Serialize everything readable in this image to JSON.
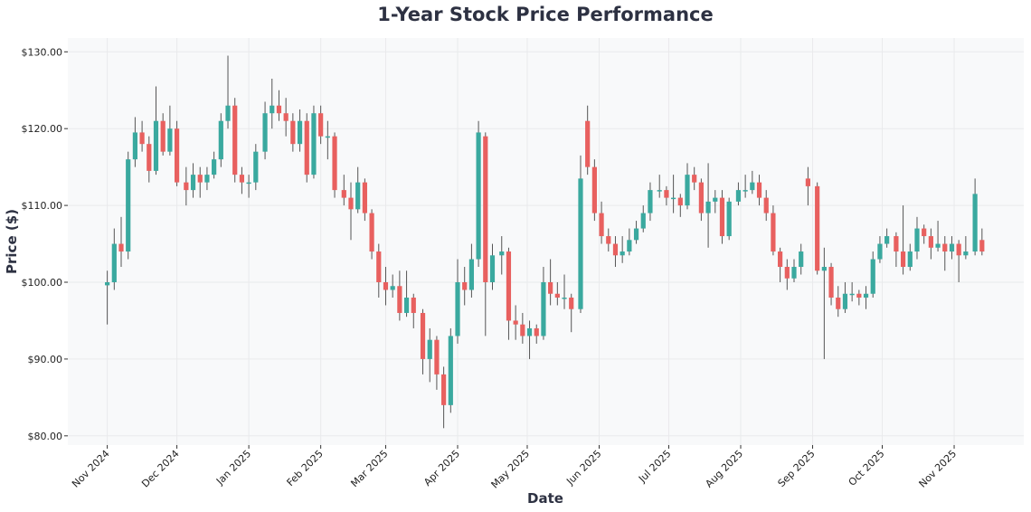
{
  "chart_data": {
    "type": "candlestick",
    "title": "1-Year Stock Price Performance",
    "xlabel": "Date",
    "ylabel": "Price ($)",
    "ylim": [
      78.8,
      131.8
    ],
    "xlim": [
      "2024-10-15",
      "2025-12-01"
    ],
    "grid": true,
    "legend": "none",
    "colors": {
      "up": "#3aa99f",
      "down": "#e8605f",
      "wick": "#555555",
      "plot_bg": "#f8f9fa",
      "grid": "#e9eaec"
    },
    "y_ticks": [
      {
        "value": 80,
        "label": "$80.00"
      },
      {
        "value": 90,
        "label": "$90.00"
      },
      {
        "value": 100,
        "label": "$100.00"
      },
      {
        "value": 110,
        "label": "$110.00"
      },
      {
        "value": 120,
        "label": "$120.00"
      },
      {
        "value": 130,
        "label": "$130.00"
      }
    ],
    "x_ticks": [
      {
        "date": "2024-11-01",
        "label": "Nov 2024"
      },
      {
        "date": "2024-12-01",
        "label": "Dec 2024"
      },
      {
        "date": "2025-01-01",
        "label": "Jan 2025"
      },
      {
        "date": "2025-02-01",
        "label": "Feb 2025"
      },
      {
        "date": "2025-03-01",
        "label": "Mar 2025"
      },
      {
        "date": "2025-04-01",
        "label": "Apr 2025"
      },
      {
        "date": "2025-05-01",
        "label": "May 2025"
      },
      {
        "date": "2025-06-01",
        "label": "Jun 2025"
      },
      {
        "date": "2025-07-01",
        "label": "Jul 2025"
      },
      {
        "date": "2025-08-01",
        "label": "Aug 2025"
      },
      {
        "date": "2025-09-01",
        "label": "Sep 2025"
      },
      {
        "date": "2025-10-01",
        "label": "Oct 2025"
      },
      {
        "date": "2025-11-01",
        "label": "Nov 2025"
      }
    ],
    "ohlc_fields": [
      "date",
      "open",
      "high",
      "low",
      "close"
    ],
    "ohlc": [
      [
        "2024-11-01",
        99.6,
        101.5,
        94.5,
        100
      ],
      [
        "2024-11-04",
        100,
        107,
        99,
        105
      ],
      [
        "2024-11-07",
        105,
        108.5,
        102,
        104
      ],
      [
        "2024-11-10",
        104,
        117,
        103,
        116
      ],
      [
        "2024-11-13",
        116,
        121.5,
        115,
        119.5
      ],
      [
        "2024-11-16",
        119.5,
        121,
        117,
        118
      ],
      [
        "2024-11-19",
        118,
        119,
        113,
        114.5
      ],
      [
        "2024-11-22",
        114.5,
        125.5,
        114,
        121
      ],
      [
        "2024-11-25",
        121,
        122,
        116.5,
        117
      ],
      [
        "2024-11-28",
        117,
        123,
        116.5,
        120
      ],
      [
        "2024-12-01",
        120,
        121,
        112.5,
        113
      ],
      [
        "2024-12-05",
        113,
        115,
        110,
        112
      ],
      [
        "2024-12-08",
        112,
        115.5,
        111,
        114
      ],
      [
        "2024-12-11",
        114,
        115,
        111,
        113
      ],
      [
        "2024-12-14",
        113,
        115,
        112,
        114
      ],
      [
        "2024-12-17",
        114,
        117,
        113.5,
        116
      ],
      [
        "2024-12-20",
        116,
        122,
        115,
        121
      ],
      [
        "2024-12-23",
        121,
        129.5,
        120,
        123
      ],
      [
        "2024-12-26",
        123,
        124,
        113,
        114
      ],
      [
        "2024-12-29",
        114,
        115,
        111.5,
        113
      ],
      [
        "2025-01-01",
        113,
        114,
        111,
        113
      ],
      [
        "2025-01-04",
        113,
        118,
        112,
        117
      ],
      [
        "2025-01-08",
        117,
        123.5,
        116,
        122
      ],
      [
        "2025-01-11",
        122,
        126.5,
        120,
        123
      ],
      [
        "2025-01-14",
        123,
        125,
        121,
        122
      ],
      [
        "2025-01-17",
        122,
        124,
        119,
        121
      ],
      [
        "2025-01-20",
        121,
        122,
        117,
        118
      ],
      [
        "2025-01-23",
        118,
        122.5,
        117,
        121
      ],
      [
        "2025-01-26",
        121,
        122,
        113,
        114
      ],
      [
        "2025-01-29",
        114,
        123,
        113.5,
        122
      ],
      [
        "2025-02-01",
        122,
        123,
        118,
        119
      ],
      [
        "2025-02-04",
        119,
        121,
        116,
        119
      ],
      [
        "2025-02-07",
        119,
        119.5,
        111,
        112
      ],
      [
        "2025-02-11",
        112,
        114,
        110,
        111
      ],
      [
        "2025-02-14",
        111,
        113,
        105.5,
        109.5
      ],
      [
        "2025-02-17",
        109.5,
        115,
        109,
        113
      ],
      [
        "2025-02-20",
        113,
        113.5,
        108,
        109
      ],
      [
        "2025-02-23",
        109,
        109.5,
        103,
        104
      ],
      [
        "2025-02-26",
        104,
        105,
        98,
        100
      ],
      [
        "2025-03-01",
        100,
        102,
        97,
        99
      ],
      [
        "2025-03-04",
        99,
        101,
        98,
        99.5
      ],
      [
        "2025-03-07",
        99.5,
        101.5,
        95,
        96
      ],
      [
        "2025-03-10",
        96,
        101.5,
        95.5,
        98
      ],
      [
        "2025-03-13",
        98,
        98.5,
        94,
        96
      ],
      [
        "2025-03-17",
        96,
        96.5,
        88,
        90
      ],
      [
        "2025-03-20",
        90,
        94,
        87,
        92.5
      ],
      [
        "2025-03-23",
        92.5,
        93,
        86,
        88
      ],
      [
        "2025-03-26",
        88,
        89,
        81,
        84
      ],
      [
        "2025-03-29",
        84,
        94,
        83,
        93
      ],
      [
        "2025-04-01",
        93,
        103,
        92,
        100
      ],
      [
        "2025-04-04",
        100,
        102,
        97,
        99
      ],
      [
        "2025-04-07",
        99,
        105,
        98,
        103
      ],
      [
        "2025-04-10",
        103,
        121,
        102,
        119.5
      ],
      [
        "2025-04-13",
        119,
        119.5,
        93,
        100
      ],
      [
        "2025-04-16",
        100,
        105,
        99,
        103.5
      ],
      [
        "2025-04-20",
        103.5,
        106,
        101,
        104
      ],
      [
        "2025-04-23",
        104,
        104.5,
        92.5,
        95
      ],
      [
        "2025-04-26",
        95,
        97,
        92.5,
        94.5
      ],
      [
        "2025-04-29",
        94.5,
        96,
        92,
        93
      ],
      [
        "2025-05-02",
        93,
        95,
        90,
        94
      ],
      [
        "2025-05-05",
        94,
        94.5,
        92,
        93
      ],
      [
        "2025-05-08",
        93,
        102,
        92.5,
        100
      ],
      [
        "2025-05-11",
        100,
        103,
        97,
        98.5
      ],
      [
        "2025-05-14",
        98.5,
        100,
        97,
        98
      ],
      [
        "2025-05-17",
        98,
        101,
        96.5,
        98
      ],
      [
        "2025-05-20",
        98,
        98.5,
        93.5,
        96.5
      ],
      [
        "2025-05-24",
        96.5,
        116.5,
        96,
        113.5
      ],
      [
        "2025-05-27",
        121,
        123,
        114,
        115
      ],
      [
        "2025-05-30",
        115,
        116,
        108,
        109
      ],
      [
        "2025-06-02",
        109,
        110.5,
        105,
        106
      ],
      [
        "2025-06-05",
        106,
        107,
        104,
        105
      ],
      [
        "2025-06-08",
        105,
        106,
        102,
        103.5
      ],
      [
        "2025-06-11",
        103.5,
        106,
        102.5,
        104
      ],
      [
        "2025-06-14",
        104,
        107,
        103.5,
        105.5
      ],
      [
        "2025-06-17",
        105.5,
        108,
        105,
        107
      ],
      [
        "2025-06-20",
        107,
        110,
        106.5,
        109
      ],
      [
        "2025-06-23",
        109,
        113,
        108,
        112
      ],
      [
        "2025-06-27",
        112,
        114,
        111,
        112
      ],
      [
        "2025-06-30",
        112,
        112.5,
        110,
        111
      ],
      [
        "2025-07-03",
        111,
        114,
        109,
        111
      ],
      [
        "2025-07-06",
        111,
        111.5,
        108.5,
        110
      ],
      [
        "2025-07-09",
        110,
        115.5,
        109.5,
        114
      ],
      [
        "2025-07-12",
        114,
        115,
        112,
        113
      ],
      [
        "2025-07-15",
        113,
        113.5,
        108,
        109
      ],
      [
        "2025-07-18",
        109,
        115.5,
        104.5,
        110.5
      ],
      [
        "2025-07-21",
        110.5,
        112,
        109,
        111
      ],
      [
        "2025-07-24",
        111,
        112,
        105,
        106
      ],
      [
        "2025-07-27",
        106,
        111,
        105.5,
        110.5
      ],
      [
        "2025-07-31",
        110.5,
        113,
        110,
        112
      ],
      [
        "2025-08-03",
        112,
        114,
        111,
        112
      ],
      [
        "2025-08-06",
        112,
        114.5,
        111.5,
        113
      ],
      [
        "2025-08-09",
        113,
        114,
        110,
        111
      ],
      [
        "2025-08-12",
        111,
        112,
        108,
        109
      ],
      [
        "2025-08-15",
        109,
        110,
        103.5,
        104
      ],
      [
        "2025-08-18",
        104,
        104.5,
        100,
        102
      ],
      [
        "2025-08-21",
        102,
        103,
        99,
        100.5
      ],
      [
        "2025-08-24",
        100.5,
        103,
        100,
        102
      ],
      [
        "2025-08-27",
        102,
        105,
        101,
        104
      ],
      [
        "2025-08-30",
        113.5,
        115,
        110,
        112.5
      ],
      [
        "2025-09-03",
        112.5,
        113,
        101,
        101.5
      ],
      [
        "2025-09-06",
        101.5,
        104.5,
        90,
        102
      ],
      [
        "2025-09-09",
        102,
        102.5,
        97,
        98
      ],
      [
        "2025-09-12",
        98,
        99.5,
        95.5,
        96.5
      ],
      [
        "2025-09-15",
        96.5,
        100,
        96,
        98.5
      ],
      [
        "2025-09-18",
        98.5,
        100,
        97.5,
        98.5
      ],
      [
        "2025-09-21",
        98.5,
        99,
        97,
        98
      ],
      [
        "2025-09-24",
        98,
        99.5,
        96.5,
        98.5
      ],
      [
        "2025-09-27",
        98.5,
        104,
        98,
        103
      ],
      [
        "2025-09-30",
        103,
        106,
        102.5,
        105
      ],
      [
        "2025-10-03",
        105,
        107,
        104.5,
        106
      ],
      [
        "2025-10-07",
        106,
        106.5,
        102,
        104
      ],
      [
        "2025-10-10",
        104,
        110,
        101,
        102
      ],
      [
        "2025-10-13",
        102,
        105,
        101.5,
        104
      ],
      [
        "2025-10-16",
        104,
        108.5,
        103,
        107
      ],
      [
        "2025-10-19",
        107,
        107.5,
        105,
        106
      ],
      [
        "2025-10-22",
        106,
        107,
        103,
        104.5
      ],
      [
        "2025-10-25",
        104.5,
        108,
        104,
        105
      ],
      [
        "2025-10-28",
        105,
        106,
        101.5,
        104
      ],
      [
        "2025-10-31",
        104,
        106,
        103,
        105
      ],
      [
        "2025-11-03",
        105,
        105.5,
        100,
        103.5
      ],
      [
        "2025-11-06",
        103.5,
        106,
        103,
        104
      ],
      [
        "2025-11-10",
        104,
        113.5,
        103.5,
        111.5
      ],
      [
        "2025-11-13",
        105.5,
        107,
        103.5,
        104
      ]
    ]
  }
}
